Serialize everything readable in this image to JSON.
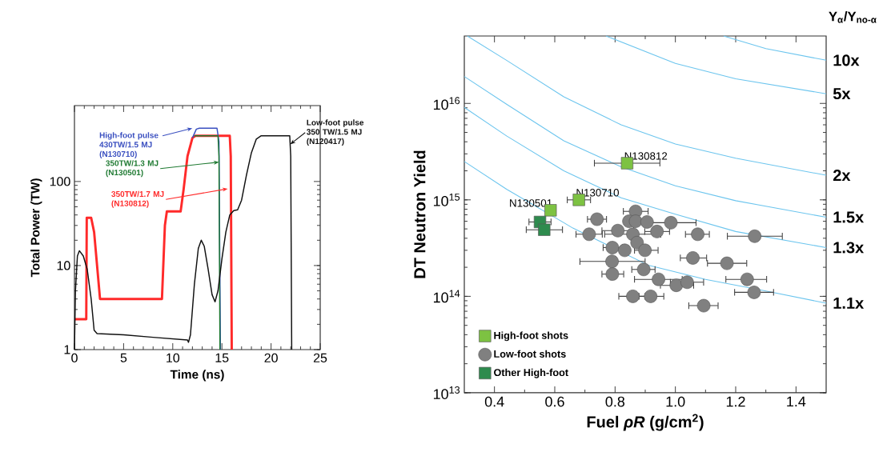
{
  "chart_data": [
    {
      "type": "line",
      "xlabel": "Time (ns)",
      "ylabel": "Total Power (TW)",
      "log": "y",
      "xlim": [
        0,
        25
      ],
      "ylim": [
        1,
        800
      ],
      "xticks": [
        0,
        5,
        10,
        15,
        20,
        25
      ],
      "yticks": [
        1,
        10,
        100
      ],
      "marker": "none",
      "line_style": "solid",
      "series": [
        {
          "color": "#3a4fc0",
          "x": [
            12.0,
            12.4,
            12.7,
            14.5,
            14.7,
            14.85
          ],
          "values": [
            330,
            420,
            430,
            430,
            300,
            1
          ]
        },
        {
          "color": "#1f7a32",
          "x": [
            12.2,
            14.6,
            14.7,
            14.8
          ],
          "values": [
            350,
            350,
            200,
            1
          ]
        },
        {
          "color": "#ff2a2a",
          "x": [
            0,
            1.2,
            1.25,
            1.7,
            2.0,
            2.3,
            2.6,
            8.9,
            9.2,
            9.4,
            10.8,
            11.1,
            11.5,
            12.0,
            12.3,
            15.8,
            15.9,
            16.0
          ],
          "values": [
            2.3,
            2.3,
            37,
            37,
            25,
            10,
            4,
            4,
            30,
            44,
            44,
            80,
            200,
            330,
            350,
            350,
            200,
            1
          ]
        },
        {
          "color": "#111111",
          "x": [
            0,
            0.1,
            0.3,
            0.5,
            0.9,
            1.3,
            1.7,
            2.0,
            2.3,
            5,
            8,
            11.5,
            11.6,
            11.8,
            12.2,
            12.6,
            12.9,
            13.2,
            13.6,
            14.0,
            14.3,
            14.6,
            15.0,
            15.4,
            15.8,
            16.2,
            16.6,
            17.0,
            17.5,
            18.0,
            18.5,
            19.0,
            21.9,
            22.0,
            22.1
          ],
          "values": [
            1,
            5,
            13,
            15,
            13,
            9,
            4,
            1.7,
            1.55,
            1.5,
            1.4,
            1.3,
            1.22,
            1.5,
            6,
            16,
            20,
            17,
            9,
            4.5,
            3.7,
            5,
            12,
            25,
            40,
            45,
            46,
            60,
            120,
            220,
            320,
            350,
            350,
            200,
            1
          ]
        }
      ],
      "annotations": [
        {
          "text": "High-foot pulse 430TW/1.5 MJ (N130710)",
          "x": 12.0,
          "y": 430
        },
        {
          "text": "350TW/1.3 MJ (N130501)",
          "x": 14.7,
          "y": 170
        },
        {
          "text": "350TW/1.7 MJ (N130812)",
          "x": 15.6,
          "y": 82
        },
        {
          "text": "Low-foot pulse 350 TW/1.5 MJ (N120417)",
          "x": 21.95,
          "y": 277
        }
      ]
    },
    {
      "type": "scatter",
      "xlabel": "Fuel *ρR* (g/cm$^{2}$)",
      "ylabel": "DT Neutron Yield",
      "log": "y",
      "xlim": [
        0.3,
        1.5
      ],
      "ylim": [
        10000000000000.0,
        5e+16
      ],
      "xticks": [
        0.4,
        0.6,
        0.8,
        {
          "value": 1,
          "label": "1.0"
        },
        1.2,
        1.4
      ],
      "yticks": [
        {
          "value": 10000000000000.0,
          "label": "10$^{13}$"
        },
        {
          "value": 100000000000000.0,
          "label": "10$^{14}$"
        },
        {
          "value": 1000000000000000.0,
          "label": "10$^{15}$"
        },
        {
          "value": 1e+16,
          "label": "10$^{16}$"
        }
      ],
      "legend": "bottom left",
      "series": [
        {
          "name": "10x",
          "type": "line",
          "color": "#6cc5ee",
          "x": [
            1.16,
            1.3,
            1.5
          ],
          "values": [
            5e+16,
            3.7e+16,
            2.8e+16
          ]
        },
        {
          "name": "5x",
          "type": "line",
          "color": "#6cc5ee",
          "x": [
            0.77,
            1.0,
            1.2,
            1.5
          ],
          "values": [
            5e+16,
            2.6e+16,
            1.8e+16,
            1.26e+16
          ]
        },
        {
          "name": "2x",
          "type": "line",
          "color": "#6cc5ee",
          "x": [
            0.31,
            0.44,
            0.63,
            0.82,
            1.0,
            1.2,
            1.5
          ],
          "values": [
            5e+16,
            2.8e+16,
            1.17e+16,
            6000000000000000.0,
            3800000000000000.0,
            2700000000000000.0,
            1800000000000000.0
          ]
        },
        {
          "name": "1.5x",
          "type": "line",
          "color": "#6cc5ee",
          "x": [
            0.3,
            0.44,
            0.63,
            0.82,
            1.0,
            1.2,
            1.5
          ],
          "values": [
            1.9e+16,
            9800000000000000.0,
            4100000000000000.0,
            2200000000000000.0,
            1400000000000000.0,
            980000000000000.0,
            660000000000000.0
          ]
        },
        {
          "name": "1.3x",
          "type": "line",
          "color": "#6cc5ee",
          "x": [
            0.3,
            0.44,
            0.63,
            0.82,
            1.0,
            1.2,
            1.5
          ],
          "values": [
            9100000000000000.0,
            4600000000000000.0,
            2000000000000000.0,
            1050000000000000.0,
            710000000000000.0,
            470000000000000.0,
            320000000000000.0
          ]
        },
        {
          "name": "1.1x",
          "type": "line",
          "color": "#6cc5ee",
          "x": [
            0.3,
            0.44,
            0.63,
            0.66,
            0.91,
            1.1,
            1.29,
            1.5
          ],
          "values": [
            2500000000000000.0,
            1290000000000000.0,
            580000000000000.0,
            510000000000000.0,
            210000000000000.0,
            150000000000000.0,
            115000000000000.0,
            85000000000000.0
          ]
        },
        {
          "name": "High-foot shots",
          "marker": "square",
          "color": "#7dc242",
          "x": [
            0.84,
            0.68,
            0.586
          ],
          "values": [
            2400000000000000.0,
            1000000000000000.0,
            780000000000000.0
          ],
          "xerrors": [
            [
              0.73,
              0.95
            ],
            [
              0.64,
              0.72
            ],
            null
          ]
        },
        {
          "name": "Low-foot shots",
          "marker": "circle",
          "color": "#808080",
          "x": [
            0.868,
            0.74,
            0.846,
            0.868,
            0.906,
            0.985,
            0.809,
            0.939,
            0.714,
            0.859,
            1.074,
            1.263,
            0.873,
            0.791,
            0.832,
            0.899,
            0.79,
            1.058,
            1.171,
            0.895,
            0.791,
            0.944,
            1.003,
            1.039,
            1.238,
            1.261,
            0.859,
            0.918,
            1.094
          ],
          "values": [
            760000000000000.0,
            630000000000000.0,
            600000000000000.0,
            600000000000000.0,
            590000000000000.0,
            580000000000000.0,
            480000000000000.0,
            470000000000000.0,
            440000000000000.0,
            440000000000000.0,
            440000000000000.0,
            420000000000000.0,
            360000000000000.0,
            320000000000000.0,
            300000000000000.0,
            300000000000000.0,
            230000000000000.0,
            250000000000000.0,
            220000000000000.0,
            190000000000000.0,
            170000000000000.0,
            150000000000000.0,
            130000000000000.0,
            140000000000000.0,
            150000000000000.0,
            110000000000000.0,
            100000000000000.0,
            100000000000000.0,
            80000000000000.0
          ],
          "xerrors": [
            [
              0.826,
              0.911
            ],
            [
              0.707,
              0.773
            ],
            null,
            null,
            null,
            [
              0.92,
              1.07
            ],
            [
              0.755,
              0.863
            ],
            [
              0.897,
              0.982
            ],
            [
              0.669,
              0.759
            ],
            [
              0.764,
              0.953
            ],
            [
              1.032,
              1.114
            ],
            [
              1.171,
              1.356
            ],
            null,
            [
              0.759,
              0.826
            ],
            null,
            [
              0.863,
              0.944
            ],
            [
              0.682,
              0.901
            ],
            [
              1.015,
              1.105
            ],
            [
              1.105,
              1.238
            ],
            [
              0.854,
              0.934
            ],
            [
              0.755,
              0.83
            ],
            [
              0.863,
              1.024
            ],
            [
              0.949,
              1.062
            ],
            [
              0.982,
              1.095
            ],
            [
              1.166,
              1.304
            ],
            [
              1.195,
              1.327
            ],
            [
              0.811,
              0.901
            ],
            [
              0.878,
              0.963
            ],
            [
              1.043,
              1.143
            ]
          ]
        },
        {
          "name": "Other High-foot",
          "marker": "square",
          "color": "#2e8b4e",
          "x": [
            0.551,
            0.565
          ],
          "values": [
            590000000000000.0,
            490000000000000.0
          ],
          "xerrors": [
            [
              0.513,
              0.589
            ],
            [
              0.504,
              0.627
            ]
          ]
        }
      ],
      "annotations": [
        "Y$_{α}$/Y$_{no-α}$",
        {
          "text": "N130812",
          "x": 0.84,
          "y": 2400000000000000.0
        },
        {
          "text": "N130710",
          "x": 0.68,
          "y": 1000000000000000.0
        },
        {
          "text": "N130501",
          "x": 0.586,
          "y": 780000000000000.0
        }
      ]
    }
  ]
}
